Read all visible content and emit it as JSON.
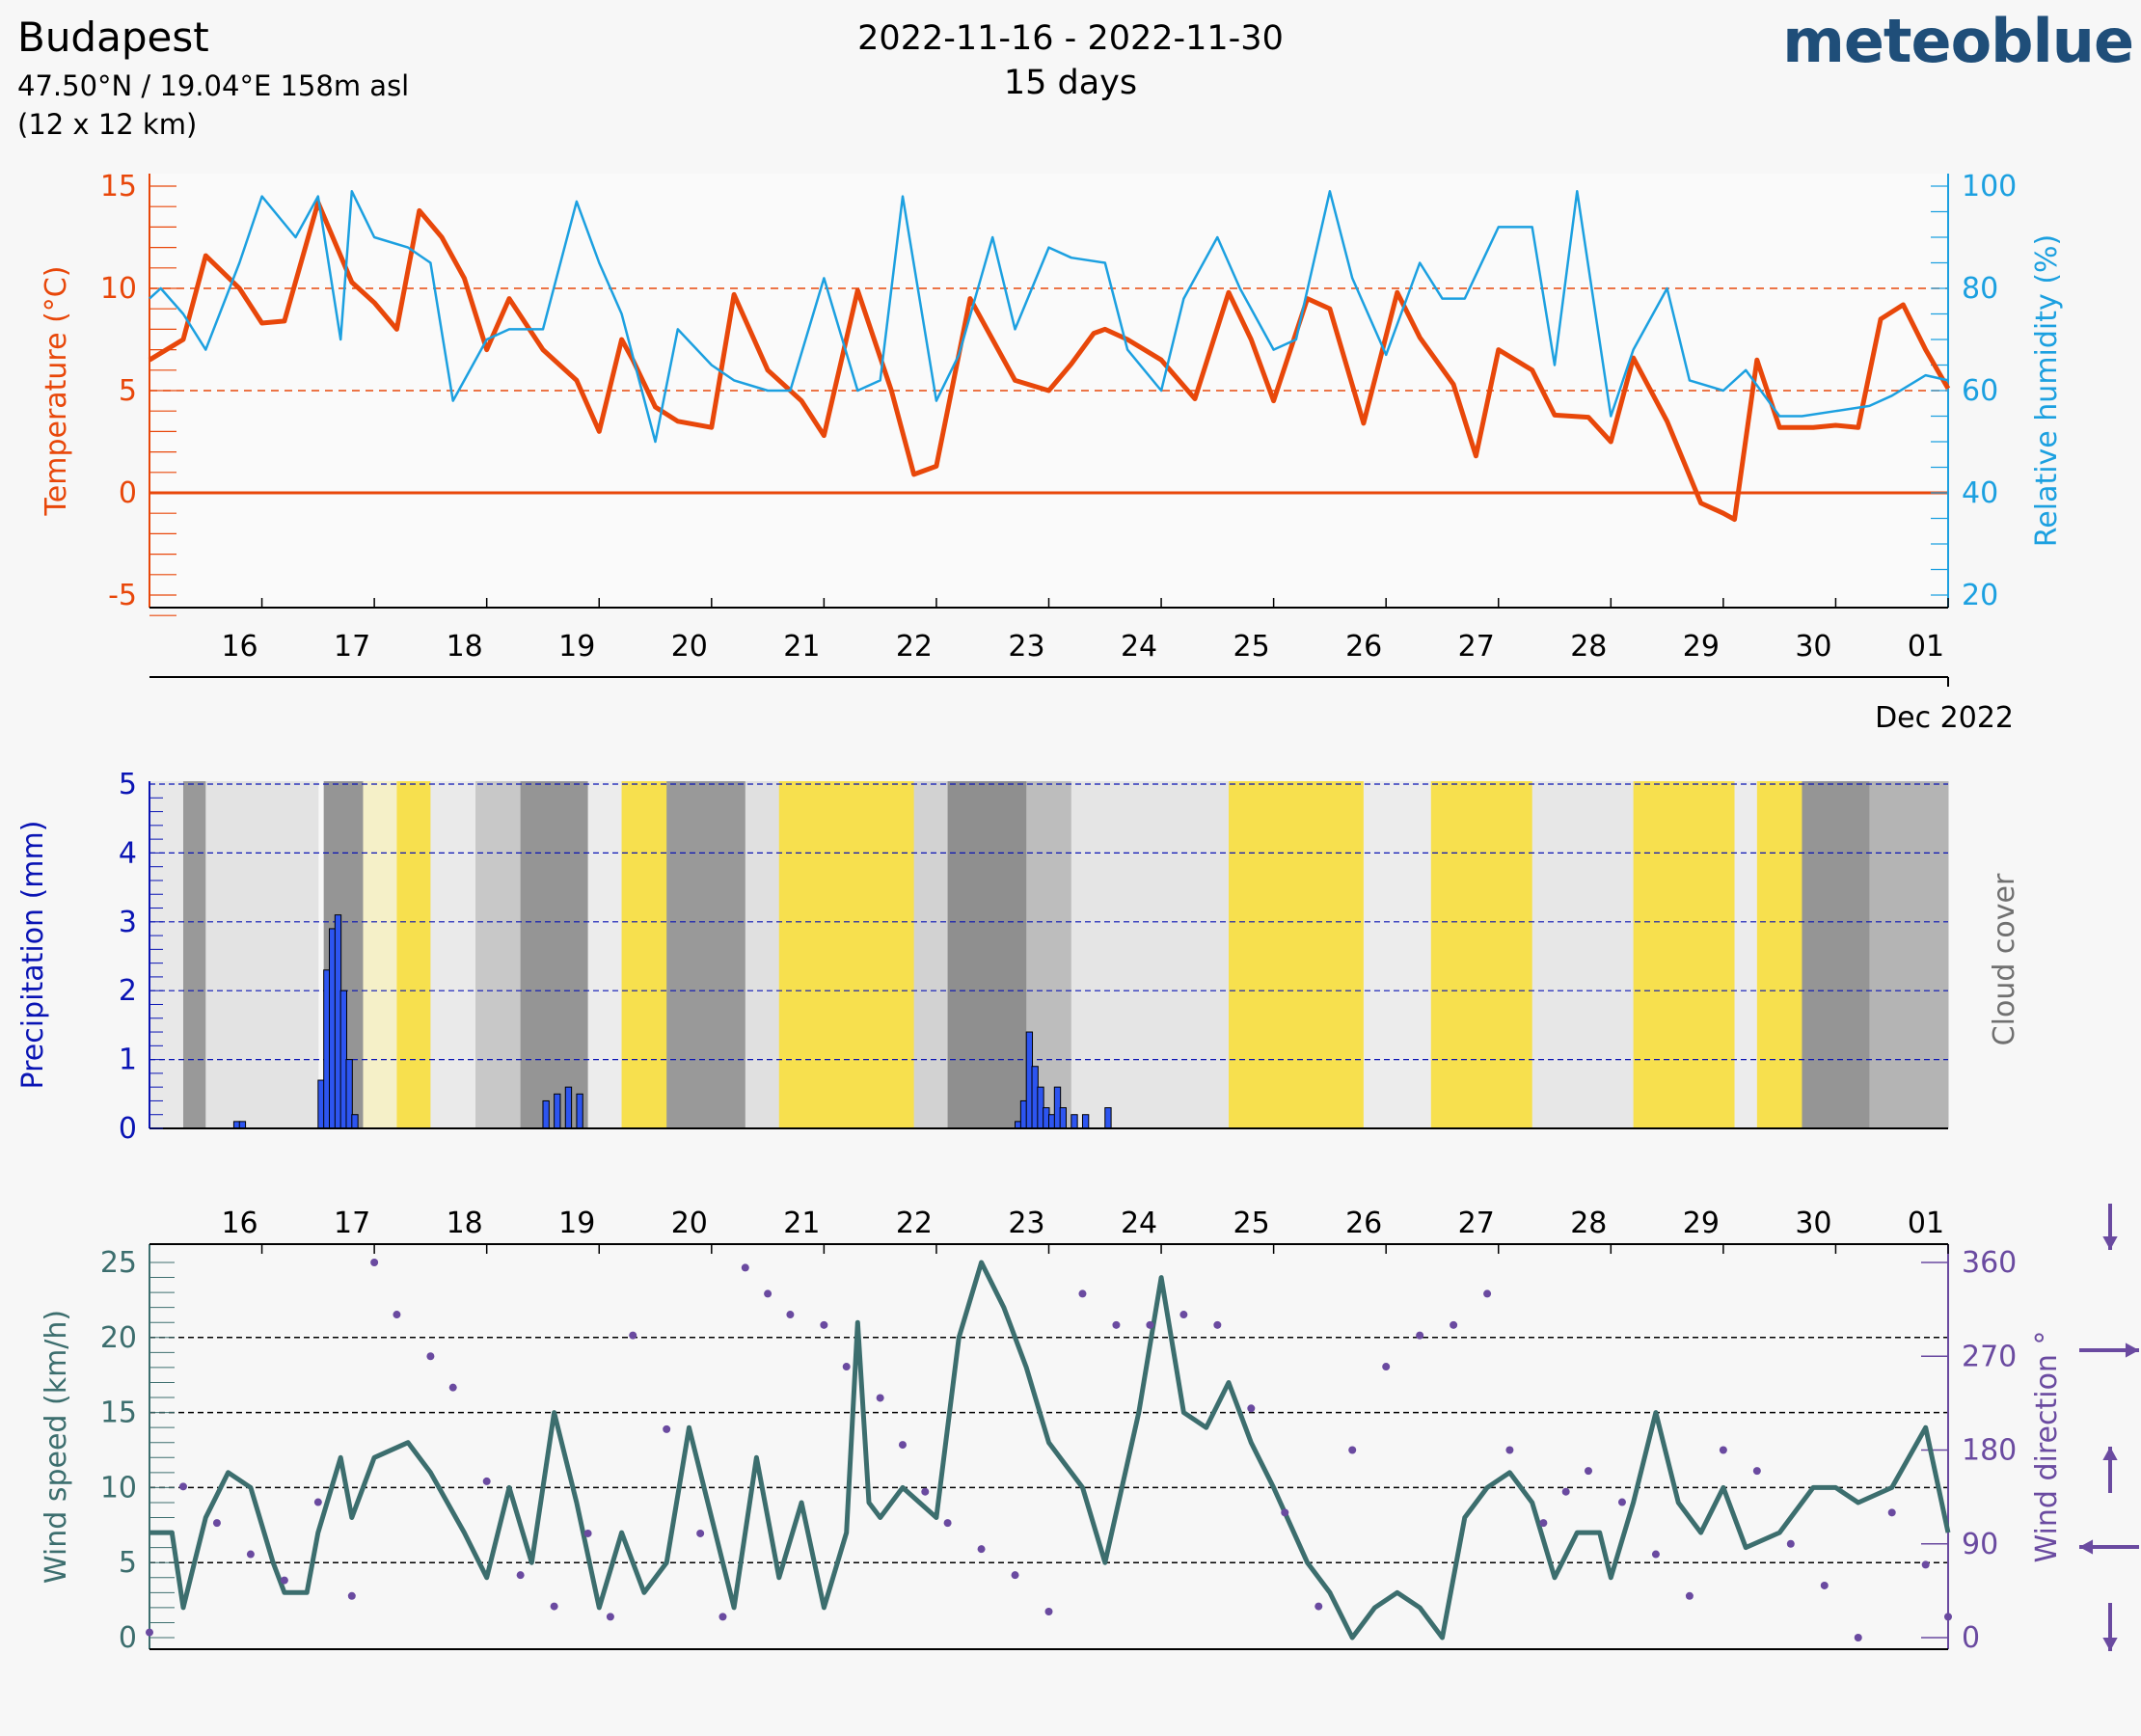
{
  "header": {
    "location": "Budapest",
    "coordinates": "47.50°N / 19.04°E   158m asl",
    "grid": "(12 x 12 km)",
    "date_range": "2022-11-16 - 2022-11-30",
    "duration": "15 days",
    "brand": "meteoblue"
  },
  "colors": {
    "temperature": "#e8470a",
    "humidity": "#1ca0e0",
    "precipitation": "#0a14b4",
    "precip_fill": "#2d55f0",
    "wind_speed": "#3c6e6e",
    "wind_direction": "#6a4aa0",
    "sun": "#f7e04e",
    "cloud_text": "#707070"
  },
  "chart_data": [
    {
      "type": "line",
      "title": "",
      "xlabel": "",
      "x_ticks": [
        "16",
        "17",
        "18",
        "19",
        "20",
        "21",
        "22",
        "23",
        "24",
        "25",
        "26",
        "27",
        "28",
        "29",
        "30",
        "01"
      ],
      "x_month_label": "Dec 2022",
      "y_left_label": "Temperature (°C)",
      "y_left_ticks": [
        "15",
        "10",
        "5",
        "0",
        "-5"
      ],
      "y_left_range": [
        -5,
        15
      ],
      "y_right_label": "Relative humidity (%)",
      "y_right_ticks": [
        "100",
        "80",
        "60",
        "40",
        "20"
      ],
      "y_right_range": [
        20,
        100
      ],
      "series": [
        {
          "name": "Temperature (°C)",
          "axis": "left",
          "x": [
            0,
            0.3,
            0.5,
            0.8,
            1,
            1.2,
            1.5,
            1.8,
            2,
            2.2,
            2.4,
            2.6,
            2.7,
            2.8,
            3,
            3.2,
            3.5,
            3.8,
            4,
            4.2,
            4.3,
            4.5,
            4.7,
            5,
            5.2,
            5.5,
            5.8,
            6,
            6.3,
            6.6,
            6.8,
            7,
            7.3,
            7.5,
            7.7,
            8,
            8.2,
            8.4,
            8.5,
            8.7,
            9,
            9.3,
            9.6,
            9.8,
            10,
            10.3,
            10.5,
            10.8,
            11.1,
            11.3,
            11.6,
            11.8,
            12,
            12.3,
            12.5,
            12.8,
            13,
            13.2,
            13.5,
            13.8,
            14,
            14.1,
            14.3,
            14.5,
            14.8,
            15,
            15.2,
            15.4,
            15.6,
            15.8,
            16
          ],
          "y": [
            6.5,
            7.5,
            11.6,
            10,
            8.3,
            8.4,
            14.2,
            10.3,
            9.3,
            8,
            13.8,
            12.5,
            11.5,
            10.5,
            7,
            9.5,
            7,
            5.5,
            3,
            7.5,
            6.5,
            4.2,
            3.5,
            3.2,
            9.7,
            6,
            4.5,
            2.8,
            9.9,
            5,
            0.9,
            1.3,
            9.5,
            7.5,
            5.5,
            5,
            6.3,
            7.8,
            8,
            7.5,
            6.5,
            4.6,
            9.8,
            7.5,
            4.5,
            9.5,
            9,
            3.4,
            9.8,
            7.6,
            5.3,
            1.8,
            7,
            6,
            3.8,
            3.7,
            2.5,
            6.6,
            3.5,
            -0.5,
            -1,
            -1.3,
            6.5,
            3.2,
            3.2,
            3.3,
            3.2,
            8.5,
            9.2,
            7,
            5.1
          ]
        },
        {
          "name": "Relative humidity (%)",
          "axis": "right",
          "x": [
            0,
            0.1,
            0.3,
            0.5,
            0.8,
            1,
            1.3,
            1.5,
            1.7,
            1.8,
            2,
            2.3,
            2.5,
            2.7,
            2.8,
            3,
            3.2,
            3.5,
            3.8,
            4,
            4.2,
            4.5,
            4.7,
            5,
            5.2,
            5.5,
            5.7,
            6,
            6.3,
            6.5,
            6.7,
            7,
            7.2,
            7.5,
            7.7,
            8,
            8.2,
            8.5,
            8.7,
            9,
            9.2,
            9.5,
            9.7,
            10,
            10.2,
            10.5,
            10.7,
            11,
            11.3,
            11.5,
            11.7,
            12,
            12.3,
            12.5,
            12.7,
            13,
            13.2,
            13.5,
            13.7,
            14,
            14.2,
            14.5,
            14.7,
            15,
            15.3,
            15.5,
            15.8,
            16
          ],
          "y": [
            78,
            80,
            75,
            68,
            85,
            98,
            90,
            98,
            70,
            99,
            90,
            88,
            85,
            58,
            62,
            70,
            72,
            72,
            97,
            85,
            75,
            50,
            72,
            65,
            62,
            60,
            60,
            82,
            60,
            62,
            98,
            58,
            67,
            90,
            72,
            88,
            86,
            85,
            68,
            60,
            78,
            90,
            80,
            68,
            70,
            99,
            82,
            67,
            85,
            78,
            78,
            92,
            92,
            65,
            99,
            55,
            68,
            80,
            62,
            60,
            64,
            55,
            55,
            56,
            57,
            59,
            63,
            62
          ]
        }
      ]
    },
    {
      "type": "bar",
      "title": "",
      "xlabel": "",
      "y_label": "Precipitation (mm)",
      "y_ticks": [
        "5",
        "4",
        "3",
        "2",
        "1",
        "0"
      ],
      "y_range": [
        0,
        5
      ],
      "right_label": "Cloud cover",
      "x": [
        0.75,
        0.8,
        1.5,
        1.55,
        1.6,
        1.65,
        1.7,
        1.75,
        1.8,
        3.5,
        3.6,
        3.7,
        3.8,
        7.7,
        7.75,
        7.8,
        7.85,
        7.9,
        7.95,
        8,
        8.05,
        8.1,
        8.2,
        8.3,
        8.5
      ],
      "values": [
        0.1,
        0.1,
        0.7,
        2.3,
        2.9,
        3.1,
        2.0,
        1.0,
        0.2,
        0.4,
        0.5,
        0.6,
        0.5,
        0.1,
        0.4,
        1.4,
        0.9,
        0.6,
        0.3,
        0.2,
        0.6,
        0.3,
        0.2,
        0.2,
        0.3
      ]
    },
    {
      "type": "line",
      "title": "",
      "xlabel": "",
      "x_ticks": [
        "16",
        "17",
        "18",
        "19",
        "20",
        "21",
        "22",
        "23",
        "24",
        "25",
        "26",
        "27",
        "28",
        "29",
        "30",
        "01"
      ],
      "y_left_label": "Wind speed (km/h)",
      "y_left_ticks": [
        "25",
        "20",
        "15",
        "10",
        "5",
        "0"
      ],
      "y_left_range": [
        0,
        25
      ],
      "y_right_label": "Wind direction °",
      "y_right_ticks": [
        "360",
        "270",
        "180",
        "90",
        "0"
      ],
      "y_right_range": [
        0,
        360
      ],
      "series": [
        {
          "name": "Wind speed (km/h)",
          "axis": "left",
          "x": [
            0,
            0.2,
            0.3,
            0.4,
            0.5,
            0.7,
            0.9,
            1.1,
            1.2,
            1.4,
            1.5,
            1.7,
            1.8,
            2,
            2.3,
            2.5,
            2.8,
            3,
            3.2,
            3.4,
            3.6,
            3.8,
            4,
            4.2,
            4.4,
            4.6,
            4.8,
            5,
            5.2,
            5.4,
            5.6,
            5.8,
            6,
            6.2,
            6.3,
            6.4,
            6.5,
            6.7,
            7,
            7.2,
            7.4,
            7.6,
            7.8,
            8,
            8.3,
            8.5,
            8.8,
            9,
            9.2,
            9.4,
            9.6,
            9.8,
            10,
            10.3,
            10.5,
            10.7,
            10.9,
            11.1,
            11.3,
            11.5,
            11.7,
            11.9,
            12.1,
            12.3,
            12.5,
            12.7,
            12.9,
            13,
            13.2,
            13.4,
            13.6,
            13.8,
            14,
            14.2,
            14.5,
            14.8,
            15,
            15.2,
            15.5,
            15.8,
            16
          ],
          "y": [
            7,
            7,
            2,
            5,
            8,
            11,
            10,
            5,
            3,
            3,
            7,
            12,
            8,
            12,
            13,
            11,
            7,
            4,
            10,
            5,
            15,
            9,
            2,
            7,
            3,
            5,
            14,
            8,
            2,
            12,
            4,
            9,
            2,
            7,
            21,
            9,
            8,
            10,
            8,
            20,
            25,
            22,
            18,
            13,
            10,
            5,
            15,
            24,
            15,
            14,
            17,
            13,
            10,
            5,
            3,
            0,
            2,
            3,
            2,
            0,
            8,
            10,
            11,
            9,
            4,
            7,
            7,
            4,
            9,
            15,
            9,
            7,
            10,
            6,
            7,
            10,
            10,
            9,
            10,
            14,
            7
          ]
        },
        {
          "name": "Wind direction °",
          "axis": "right",
          "x": [
            0,
            0.3,
            0.6,
            0.9,
            1.2,
            1.5,
            1.8,
            2,
            2.2,
            2.5,
            2.7,
            3,
            3.3,
            3.6,
            3.9,
            4.1,
            4.3,
            4.6,
            4.9,
            5.1,
            5.3,
            5.5,
            5.7,
            6,
            6.2,
            6.5,
            6.7,
            6.9,
            7.1,
            7.4,
            7.7,
            8,
            8.3,
            8.6,
            8.9,
            9.2,
            9.5,
            9.8,
            10.1,
            10.4,
            10.7,
            11,
            11.3,
            11.6,
            11.9,
            12.1,
            12.4,
            12.6,
            12.8,
            13.1,
            13.4,
            13.7,
            14,
            14.3,
            14.6,
            14.9,
            15.2,
            15.5,
            15.8,
            16
          ],
          "y": [
            5,
            145,
            110,
            80,
            55,
            130,
            40,
            360,
            310,
            270,
            240,
            150,
            60,
            30,
            100,
            20,
            290,
            200,
            100,
            20,
            355,
            330,
            310,
            300,
            260,
            230,
            185,
            140,
            110,
            85,
            60,
            25,
            330,
            300,
            300,
            310,
            300,
            220,
            120,
            30,
            180,
            260,
            290,
            300,
            330,
            180,
            110,
            140,
            160,
            130,
            80,
            40,
            180,
            160,
            90,
            50,
            0,
            120,
            70,
            20
          ]
        }
      ]
    }
  ]
}
